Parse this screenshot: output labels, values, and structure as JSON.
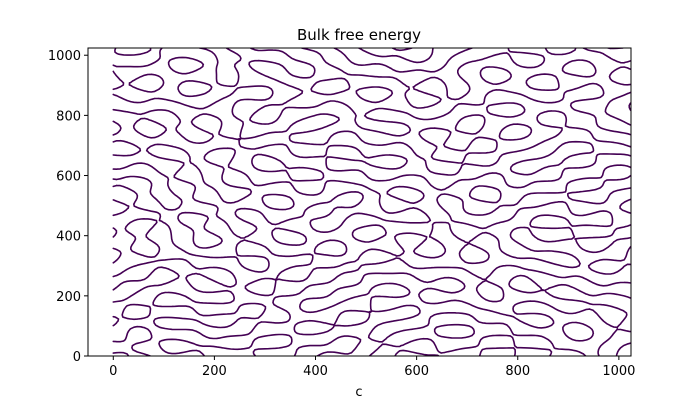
{
  "chart_data": {
    "type": "contour",
    "title": "Bulk free energy",
    "xlabel": "c",
    "ylabel": "",
    "xlim": [
      -50,
      1024
    ],
    "ylim": [
      0,
      1024
    ],
    "data_extent": {
      "x": [
        0,
        1024
      ],
      "y": [
        0,
        1024
      ]
    },
    "x_ticks": [
      "0",
      "200",
      "400",
      "600",
      "800",
      "1000"
    ],
    "y_ticks": [
      "0",
      "200",
      "400",
      "600",
      "800",
      "1000"
    ],
    "contour_level": 0,
    "contour_color": "#440154",
    "pattern": "labyrinthine spinodal-decomposition domains (single iso-contour of c)",
    "grid": false,
    "legend": "none"
  }
}
